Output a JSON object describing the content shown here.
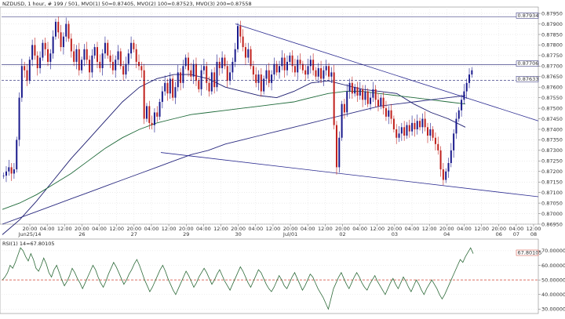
{
  "header": {
    "symbol": "NZDUSD",
    "details": ", 1 hour, # 199 / 501, MVO(1) 50=0.87405, MVO(2) 100=0.87523, MVO(3) 200=0.87558",
    "rsi_label": "RSI(1) 14=67.80105"
  },
  "colors": {
    "up_candle": "#1a1a8c",
    "down_candle": "#c0201c",
    "ma50": "#1a1a6e",
    "ma100": "#1f6a3a",
    "ma200": "#2a2a80",
    "trendline": "#2a2a90",
    "rsi_line": "#2e6b3a",
    "dashed_ref": "#1a1a6e",
    "rsi_ref": "#d04030"
  },
  "chart_data": [
    {
      "type": "candlestick",
      "title": "NZDUSD, 1 hour",
      "ylim": [
        0.8695,
        0.8798
      ],
      "y_ticks": [
        "0.87950",
        "0.87900",
        "0.87850",
        "0.87800",
        "0.87750",
        "0.87700",
        "0.87650",
        "0.87600",
        "0.87550",
        "0.87500",
        "0.87450",
        "0.87400",
        "0.87350",
        "0.87300",
        "0.87250",
        "0.87200",
        "0.87150",
        "0.87100",
        "0.87050",
        "0.87000",
        "0.86950"
      ],
      "y_tick_values": [
        0.8795,
        0.879,
        0.8785,
        0.878,
        0.8775,
        0.877,
        0.8765,
        0.876,
        0.8755,
        0.875,
        0.8745,
        0.874,
        0.8735,
        0.873,
        0.8725,
        0.872,
        0.8715,
        0.871,
        0.8705,
        0.87,
        0.8695
      ],
      "x_ticks": [
        "20:00",
        "04:00",
        "12:00",
        "20:00",
        "04:00",
        "12:00",
        "20:00",
        "04:00",
        "12:00",
        "20:00",
        "04:00",
        "12:00",
        "20:00",
        "04:00",
        "12:00",
        "20:00",
        "04:00",
        "12:00",
        "20:00",
        "04:00",
        "12:00",
        "20:00",
        "04:00",
        "12:00",
        "20:00",
        "04:00",
        "12:00",
        "20:00",
        "04:00",
        "12:00"
      ],
      "x_day_labels": [
        "Jun25/14",
        "26",
        "27",
        "29",
        "30",
        "Jul/01",
        "02",
        "03",
        "04",
        "06",
        "07",
        "08"
      ],
      "price_labels": [
        {
          "text": "0.87934",
          "value": 0.87934
        },
        {
          "text": "0.87706",
          "value": 0.87706
        },
        {
          "text": "0.87633",
          "value": 0.87633
        }
      ],
      "close_values": [
        0.8718,
        0.872,
        0.8722,
        0.8719,
        0.8721,
        0.8735,
        0.8755,
        0.877,
        0.8768,
        0.8763,
        0.8773,
        0.878,
        0.8775,
        0.8769,
        0.8774,
        0.8781,
        0.8778,
        0.8772,
        0.8776,
        0.8784,
        0.8791,
        0.8786,
        0.8779,
        0.8784,
        0.879,
        0.8783,
        0.8777,
        0.8772,
        0.8778,
        0.8768,
        0.8773,
        0.8778,
        0.8773,
        0.8767,
        0.8775,
        0.8779,
        0.8772,
        0.8769,
        0.8776,
        0.8781,
        0.8775,
        0.8772,
        0.8768,
        0.8773,
        0.8777,
        0.877,
        0.8766,
        0.8771,
        0.8776,
        0.8781,
        0.8778,
        0.8772,
        0.877,
        0.8768,
        0.8745,
        0.8751,
        0.8743,
        0.8742,
        0.8748,
        0.8746,
        0.8753,
        0.8758,
        0.8762,
        0.8757,
        0.8764,
        0.8755,
        0.876,
        0.8767,
        0.8762,
        0.877,
        0.8774,
        0.8768,
        0.8765,
        0.8771,
        0.8763,
        0.8759,
        0.8768,
        0.877,
        0.8762,
        0.8758,
        0.8767,
        0.876,
        0.8772,
        0.8769,
        0.8774,
        0.877,
        0.8763,
        0.8767,
        0.8772,
        0.8778,
        0.8789,
        0.8784,
        0.8779,
        0.8774,
        0.8778,
        0.877,
        0.8766,
        0.8762,
        0.8766,
        0.8758,
        0.8764,
        0.8768,
        0.8762,
        0.8766,
        0.8771,
        0.8767,
        0.877,
        0.8774,
        0.8768,
        0.8772,
        0.8775,
        0.877,
        0.8767,
        0.8773,
        0.8771,
        0.8768,
        0.8766,
        0.877,
        0.8773,
        0.8768,
        0.8765,
        0.8769,
        0.8764,
        0.8768,
        0.877,
        0.8765,
        0.8767,
        0.8742,
        0.8722,
        0.8736,
        0.8752,
        0.8748,
        0.8758,
        0.8762,
        0.8757,
        0.876,
        0.8756,
        0.8759,
        0.8754,
        0.8758,
        0.8752,
        0.8755,
        0.8759,
        0.8754,
        0.8751,
        0.8755,
        0.875,
        0.8746,
        0.8749,
        0.8745,
        0.874,
        0.8736,
        0.8738,
        0.8741,
        0.8737,
        0.8742,
        0.8739,
        0.8743,
        0.874,
        0.8744,
        0.8741,
        0.8745,
        0.8741,
        0.8737,
        0.874,
        0.8736,
        0.8733,
        0.873,
        0.8721,
        0.8716,
        0.872,
        0.8724,
        0.873,
        0.8738,
        0.8745,
        0.8749,
        0.8754,
        0.8758,
        0.8762,
        0.8766,
        0.8768
      ],
      "series": [
        {
          "name": "MVO(1) 50",
          "last": 0.87405,
          "values": [
            0.869,
            0.8697,
            0.8706,
            0.8716,
            0.8726,
            0.8735,
            0.8744,
            0.8753,
            0.876,
            0.8764,
            0.8766,
            0.8766,
            0.8764,
            0.876,
            0.8758,
            0.8756,
            0.8755,
            0.8758,
            0.8762,
            0.8763,
            0.8761,
            0.8759,
            0.8758,
            0.8757,
            0.8752,
            0.8748,
            0.8745,
            0.8741
          ]
        },
        {
          "name": "MVO(2) 100",
          "last": 0.87523,
          "values": [
            0.8702,
            0.8705,
            0.8709,
            0.8714,
            0.8719,
            0.8725,
            0.8731,
            0.8736,
            0.874,
            0.8743,
            0.8745,
            0.8747,
            0.8748,
            0.8749,
            0.875,
            0.8751,
            0.8752,
            0.8753,
            0.8755,
            0.8757,
            0.8758,
            0.8758,
            0.8757,
            0.8756,
            0.8755,
            0.8754,
            0.8753,
            0.8752
          ]
        },
        {
          "name": "MVO(3) 200",
          "last": 0.87558,
          "values": [
            0.8695,
            0.8698,
            0.8701,
            0.8704,
            0.8707,
            0.871,
            0.8713,
            0.8716,
            0.8719,
            0.8722,
            0.8725,
            0.8728,
            0.873,
            0.8733,
            0.8735,
            0.8737,
            0.8739,
            0.8741,
            0.8743,
            0.8745,
            0.8747,
            0.8749,
            0.8751,
            0.8752,
            0.8753,
            0.8754,
            0.8755,
            0.8756
          ]
        }
      ],
      "trendlines": [
        {
          "from": [
            0.879,
            0
          ],
          "to": [
            0.8744,
            1
          ]
        },
        {
          "from": [
            0.8729,
            0
          ],
          "to": [
            0.8708,
            1
          ]
        }
      ]
    },
    {
      "type": "line",
      "title": "RSI(1) 14=67.80105",
      "ylim": [
        27,
        78
      ],
      "y_ticks": [
        "70.00000",
        "60.00000",
        "50.00000",
        "40.00000",
        "30.00000"
      ],
      "y_tick_values": [
        70,
        60,
        50,
        40,
        30
      ],
      "reference_line": 50,
      "last_value_label": "67.80105",
      "last_value": 67.80105,
      "values": [
        50,
        52,
        55,
        60,
        58,
        62,
        67,
        72,
        70,
        66,
        63,
        68,
        64,
        58,
        56,
        60,
        65,
        61,
        55,
        52,
        57,
        60,
        55,
        50,
        46,
        49,
        53,
        58,
        55,
        51,
        48,
        44,
        48,
        52,
        56,
        60,
        57,
        52,
        48,
        45,
        49,
        54,
        58,
        62,
        59,
        55,
        51,
        47,
        50,
        54,
        57,
        61,
        64,
        60,
        55,
        50,
        46,
        42,
        45,
        49,
        53,
        57,
        60,
        56,
        51,
        47,
        43,
        40,
        44,
        48,
        52,
        56,
        53,
        49,
        45,
        48,
        52,
        55,
        58,
        55,
        51,
        47,
        50,
        54,
        57,
        53,
        49,
        46,
        43,
        47,
        51,
        55,
        59,
        56,
        52,
        48,
        45,
        49,
        53,
        57,
        55,
        51,
        47,
        44,
        42,
        45,
        49,
        53,
        50,
        46,
        44,
        48,
        52,
        55,
        51,
        47,
        43,
        46,
        50,
        54,
        52,
        48,
        44,
        41,
        38,
        34,
        30,
        37,
        44,
        48,
        52,
        55,
        51,
        47,
        44,
        48,
        52,
        55,
        52,
        48,
        45,
        43,
        47,
        50,
        53,
        49,
        46,
        43,
        40,
        44,
        48,
        51,
        47,
        44,
        48,
        52,
        49,
        45,
        42,
        46,
        50,
        47,
        43,
        40,
        44,
        47,
        50,
        47,
        44,
        40,
        37,
        40,
        44,
        48,
        52,
        56,
        60,
        64,
        62,
        66,
        69,
        72,
        68
      ]
    }
  ]
}
